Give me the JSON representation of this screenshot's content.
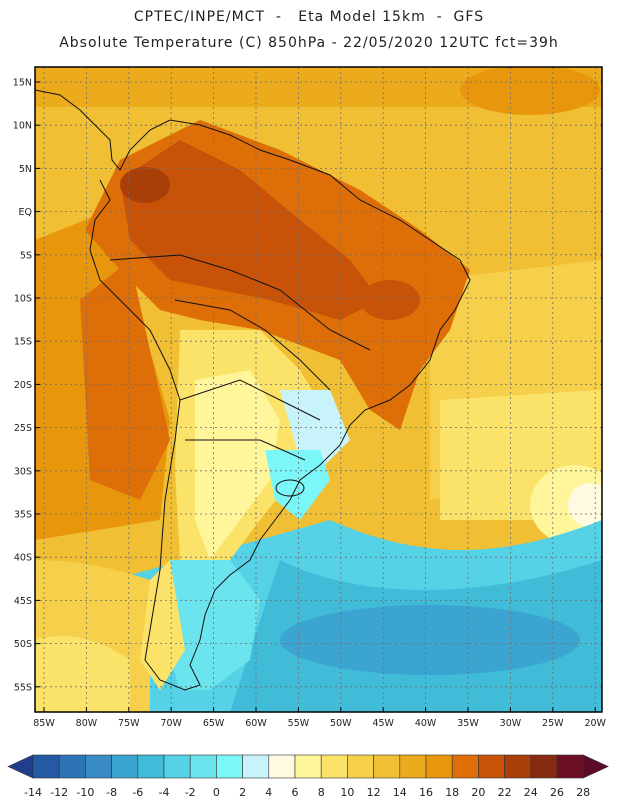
{
  "header": {
    "line1": "CPTEC/INPE/MCT  -   Eta Model 15km  -  GFS",
    "line2": "Absolute Temperature (C) 850hPa - 22/05/2020 12UTC fct=39h"
  },
  "map": {
    "lat_labels": [
      "15N",
      "10N",
      "5N",
      "EQ",
      "5S",
      "10S",
      "15S",
      "20S",
      "25S",
      "30S",
      "35S",
      "40S",
      "45S",
      "50S",
      "55S"
    ],
    "lon_labels": [
      "85W",
      "80W",
      "75W",
      "70W",
      "65W",
      "60W",
      "55W",
      "50W",
      "45W",
      "40W",
      "35W",
      "30W",
      "25W",
      "20W"
    ],
    "grid": "dotted"
  },
  "colorbar": {
    "labels": [
      "-14",
      "-12",
      "-10",
      "-8",
      "-6",
      "-4",
      "-2",
      "0",
      "2",
      "4",
      "6",
      "8",
      "10",
      "12",
      "14",
      "16",
      "18",
      "20",
      "22",
      "24",
      "26",
      "28"
    ],
    "colors": [
      "#1f3f8c",
      "#235aa3",
      "#2d74b4",
      "#3a8cc4",
      "#3ba4d0",
      "#40bcd9",
      "#55d2e6",
      "#6be4ee",
      "#7cf7f9",
      "#c9f3fb",
      "#fffae0",
      "#fff59a",
      "#fbe36a",
      "#f6d04b",
      "#f0bf34",
      "#ecaa1d",
      "#e8970d",
      "#de6e08",
      "#c75208",
      "#a83f08",
      "#872b10",
      "#6b0f25",
      "#5c0a2a"
    ]
  },
  "palette": {
    "border": "#000000",
    "background": "#ffffff"
  }
}
